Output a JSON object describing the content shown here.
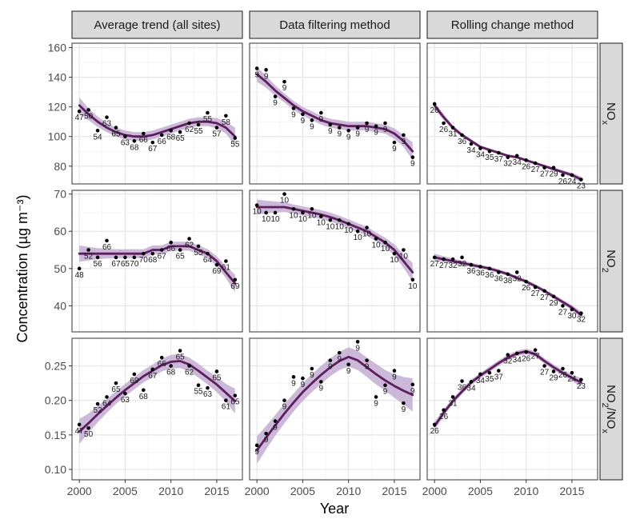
{
  "chart_data": {
    "type": "scatter",
    "xlabel": "Year",
    "ylabel": "Concentration (µg m⁻³)",
    "columns": [
      "Average trend (all sites)",
      "Data filtering method",
      "Rolling change method"
    ],
    "rows": [
      {
        "label": "NOx",
        "label_parts": [
          "NO",
          "x"
        ],
        "yticks": [
          80,
          100,
          120,
          140,
          160
        ],
        "ylim": [
          68,
          163
        ]
      },
      {
        "label": "NO2",
        "label_parts": [
          "NO",
          "2"
        ],
        "yticks": [
          40,
          50,
          60,
          70
        ],
        "ylim": [
          33,
          71
        ]
      },
      {
        "label": "NO2/NOx",
        "label_parts": [
          "NO",
          "2",
          "/NO",
          "x"
        ],
        "yticks": [
          0.1,
          0.15,
          0.2,
          0.25
        ],
        "ylim": [
          0.085,
          0.29
        ]
      }
    ],
    "xticks": [
      2000,
      2005,
      2010,
      2015
    ],
    "xlim": [
      1999.2,
      2017.8
    ],
    "colors": {
      "line": "#5c1e5c",
      "ribbon": "#c3abd1",
      "points": "#000000",
      "grid": "#e6e6e6",
      "strip": "#d9d9d9"
    },
    "panels": [
      {
        "row": 0,
        "col": 0,
        "x": [
          2000,
          2001,
          2002,
          2003,
          2004,
          2005,
          2006,
          2007,
          2008,
          2009,
          2010,
          2011,
          2012,
          2013,
          2014,
          2015,
          2016,
          2017
        ],
        "y": [
          117,
          118,
          104,
          113,
          106,
          100,
          97,
          102,
          96,
          101,
          104,
          103,
          109,
          108,
          116,
          106,
          114,
          99
        ],
        "labels": [
          "47",
          "50",
          "54",
          "63",
          "65",
          "63",
          "68",
          "66",
          "67",
          "66",
          "68",
          "65",
          "62",
          "55",
          "55",
          "57",
          "58",
          "55"
        ],
        "fit": [
          121,
          115,
          110,
          106,
          103,
          101,
          100,
          100,
          101,
          103,
          105,
          107,
          109,
          110,
          110,
          109,
          106,
          100
        ],
        "band": [
          5.5,
          4,
          3.5,
          3,
          3,
          3,
          3,
          3,
          3,
          3,
          3,
          3,
          3,
          3,
          3,
          3.5,
          4,
          6
        ]
      },
      {
        "row": 0,
        "col": 1,
        "x": [
          2000,
          2001,
          2002,
          2003,
          2004,
          2005,
          2006,
          2007,
          2008,
          2009,
          2010,
          2011,
          2012,
          2013,
          2014,
          2015,
          2016,
          2017
        ],
        "y": [
          146,
          145,
          127,
          137,
          119,
          115,
          111,
          116,
          108,
          106,
          104,
          106,
          109,
          107,
          109,
          96,
          101,
          86
        ],
        "labels": [
          "9",
          "9",
          "9",
          "9",
          "9",
          "9",
          "9",
          "9",
          "9",
          "9",
          "9",
          "9",
          "9",
          "9",
          "9",
          "9",
          "9",
          "9"
        ],
        "fit": [
          142,
          137,
          131,
          126,
          121,
          117,
          114,
          111,
          109,
          108,
          107,
          107,
          107,
          106,
          105,
          102,
          97,
          90
        ],
        "band": [
          5,
          4,
          3.5,
          3,
          3,
          3,
          3,
          3,
          3,
          3,
          3,
          3,
          3,
          3,
          3,
          3.5,
          4,
          6
        ]
      },
      {
        "row": 0,
        "col": 2,
        "x": [
          2000,
          2001,
          2002,
          2003,
          2004,
          2005,
          2006,
          2007,
          2008,
          2009,
          2010,
          2011,
          2012,
          2013,
          2014,
          2015,
          2016
        ],
        "y": [
          122,
          109,
          106,
          101,
          95,
          92,
          90,
          89,
          86,
          87,
          84,
          82,
          79,
          79,
          74,
          74,
          71
        ],
        "labels": [
          "26",
          "26",
          "31",
          "36",
          "34",
          "34",
          "35",
          "37",
          "32",
          "34",
          "26",
          "27",
          "27",
          "29",
          "26",
          "24",
          "23"
        ],
        "fit": [
          121,
          113,
          106,
          101,
          97,
          93,
          91,
          89,
          87,
          86,
          84,
          82,
          80,
          78,
          76,
          74,
          71
        ],
        "band": [
          2.5,
          2,
          1.5,
          1.3,
          1.2,
          1.1,
          1,
          1,
          1,
          1,
          1,
          1,
          1,
          1.1,
          1.2,
          1.5,
          2
        ]
      },
      {
        "row": 1,
        "col": 0,
        "x": [
          2000,
          2001,
          2002,
          2003,
          2004,
          2005,
          2006,
          2007,
          2008,
          2009,
          2010,
          2011,
          2012,
          2013,
          2014,
          2015,
          2016,
          2017
        ],
        "y": [
          50,
          55,
          53,
          57.5,
          53,
          53,
          53,
          54,
          54,
          55,
          57,
          55,
          58,
          56,
          54,
          51,
          52,
          47
        ],
        "labels": [
          "48",
          "52",
          "56",
          "66",
          "67",
          "65",
          "70",
          "70",
          "68",
          "67",
          "66",
          "65",
          "62",
          "55",
          "64",
          "69",
          "61",
          "69"
        ],
        "fit": [
          54,
          54,
          54,
          54,
          54,
          54,
          54,
          54,
          55,
          55,
          56,
          56,
          56,
          55,
          54,
          52,
          49,
          46
        ],
        "band": [
          2.2,
          1.8,
          1.5,
          1.3,
          1.2,
          1.2,
          1.2,
          1.2,
          1.2,
          1.2,
          1.2,
          1.2,
          1.2,
          1.2,
          1.2,
          1.3,
          1.6,
          2.4
        ]
      },
      {
        "row": 1,
        "col": 1,
        "x": [
          2000,
          2001,
          2002,
          2003,
          2004,
          2005,
          2006,
          2007,
          2008,
          2009,
          2010,
          2011,
          2012,
          2013,
          2014,
          2015,
          2016,
          2017
        ],
        "y": [
          67,
          65,
          65,
          70,
          66,
          65,
          66,
          64,
          63,
          63,
          62,
          60,
          61,
          58,
          57,
          54,
          55,
          47
        ],
        "labels": [
          "10",
          "10",
          "10",
          "10",
          "10",
          "10",
          "10",
          "10",
          "10",
          "10",
          "10",
          "10",
          "10",
          "10",
          "10",
          "10",
          "10",
          "10"
        ],
        "fit": [
          66.5,
          66.5,
          66.5,
          66.5,
          66,
          65.5,
          65,
          64.5,
          63.8,
          63,
          62,
          61,
          60,
          58.5,
          57,
          55,
          52,
          49
        ],
        "band": [
          2,
          1.7,
          1.5,
          1.3,
          1.2,
          1.2,
          1.2,
          1.2,
          1.2,
          1.2,
          1.2,
          1.2,
          1.2,
          1.2,
          1.3,
          1.5,
          1.8,
          2.5
        ]
      },
      {
        "row": 1,
        "col": 2,
        "x": [
          2000,
          2001,
          2002,
          2003,
          2004,
          2005,
          2006,
          2007,
          2008,
          2009,
          2010,
          2011,
          2012,
          2013,
          2014,
          2015,
          2016
        ],
        "y": [
          53,
          52.5,
          52.5,
          53,
          51,
          50.5,
          50,
          49,
          48.5,
          49,
          46.5,
          45,
          44,
          42.5,
          40,
          39,
          38
        ],
        "labels": [
          "27",
          "27",
          "32",
          "32",
          "36",
          "36",
          "36",
          "36",
          "38",
          "32",
          "26",
          "27",
          "27",
          "29",
          "27",
          "30",
          "32"
        ],
        "fit": [
          53,
          52.5,
          52,
          51.5,
          51,
          50.5,
          50,
          49.3,
          48.5,
          47.5,
          46.5,
          45.3,
          44,
          42.5,
          41,
          39.5,
          37.5
        ],
        "band": [
          1,
          0.8,
          0.7,
          0.6,
          0.6,
          0.5,
          0.5,
          0.5,
          0.5,
          0.5,
          0.5,
          0.5,
          0.5,
          0.6,
          0.6,
          0.7,
          0.9
        ]
      },
      {
        "row": 2,
        "col": 0,
        "x": [
          2000,
          2001,
          2002,
          2003,
          2004,
          2005,
          2006,
          2007,
          2008,
          2009,
          2010,
          2011,
          2012,
          2013,
          2014,
          2015,
          2016,
          2017
        ],
        "y": [
          0.165,
          0.16,
          0.195,
          0.205,
          0.225,
          0.21,
          0.238,
          0.215,
          0.245,
          0.262,
          0.25,
          0.272,
          0.25,
          0.222,
          0.218,
          0.242,
          0.2,
          0.207
        ],
        "labels": [
          "47",
          "50",
          "52",
          "64",
          "65",
          "63",
          "69",
          "68",
          "67",
          "66",
          "68",
          "65",
          "62",
          "55",
          "63",
          "65",
          "61",
          "65"
        ],
        "fit": [
          0.155,
          0.167,
          0.18,
          0.192,
          0.204,
          0.215,
          0.225,
          0.235,
          0.243,
          0.251,
          0.256,
          0.257,
          0.252,
          0.243,
          0.233,
          0.223,
          0.211,
          0.199
        ],
        "band": [
          0.018,
          0.014,
          0.012,
          0.01,
          0.009,
          0.009,
          0.009,
          0.009,
          0.009,
          0.009,
          0.01,
          0.01,
          0.01,
          0.01,
          0.01,
          0.011,
          0.013,
          0.018
        ]
      },
      {
        "row": 2,
        "col": 1,
        "x": [
          2000,
          2001,
          2002,
          2003,
          2004,
          2005,
          2006,
          2007,
          2008,
          2009,
          2010,
          2011,
          2012,
          2013,
          2014,
          2015,
          2016,
          2017
        ],
        "y": [
          0.135,
          0.152,
          0.17,
          0.2,
          0.234,
          0.232,
          0.246,
          0.227,
          0.258,
          0.269,
          0.252,
          0.285,
          0.258,
          0.205,
          0.222,
          0.243,
          0.196,
          0.223
        ],
        "labels": [
          "9",
          "9",
          "9",
          "9",
          "9",
          "9",
          "9",
          "9",
          "9",
          "9",
          "9",
          "9",
          "9",
          "9",
          "9",
          "9",
          "9",
          "9"
        ],
        "fit": [
          0.128,
          0.146,
          0.164,
          0.181,
          0.197,
          0.212,
          0.225,
          0.237,
          0.248,
          0.257,
          0.263,
          0.258,
          0.248,
          0.238,
          0.229,
          0.221,
          0.214,
          0.208
        ],
        "band": [
          0.02,
          0.017,
          0.015,
          0.014,
          0.013,
          0.013,
          0.013,
          0.013,
          0.013,
          0.013,
          0.014,
          0.014,
          0.014,
          0.015,
          0.015,
          0.017,
          0.02,
          0.024
        ]
      },
      {
        "row": 2,
        "col": 2,
        "x": [
          2000,
          2001,
          2002,
          2003,
          2004,
          2005,
          2006,
          2007,
          2008,
          2009,
          2010,
          2011,
          2012,
          2013,
          2014,
          2015,
          2016
        ],
        "y": [
          0.165,
          0.186,
          0.205,
          0.228,
          0.227,
          0.238,
          0.24,
          0.243,
          0.266,
          0.268,
          0.27,
          0.273,
          0.25,
          0.242,
          0.246,
          0.24,
          0.23
        ],
        "labels": [
          "26",
          "26",
          "31",
          "36",
          "34",
          "34",
          "35",
          "37",
          "32",
          "34",
          "26",
          "27",
          "27",
          "29",
          "26",
          "24",
          "23"
        ],
        "fit": [
          0.163,
          0.182,
          0.199,
          0.213,
          0.226,
          0.236,
          0.245,
          0.254,
          0.262,
          0.268,
          0.271,
          0.267,
          0.257,
          0.248,
          0.24,
          0.233,
          0.226
        ],
        "band": [
          0.006,
          0.005,
          0.004,
          0.004,
          0.004,
          0.004,
          0.004,
          0.004,
          0.004,
          0.004,
          0.004,
          0.004,
          0.004,
          0.004,
          0.004,
          0.005,
          0.006
        ]
      }
    ]
  }
}
